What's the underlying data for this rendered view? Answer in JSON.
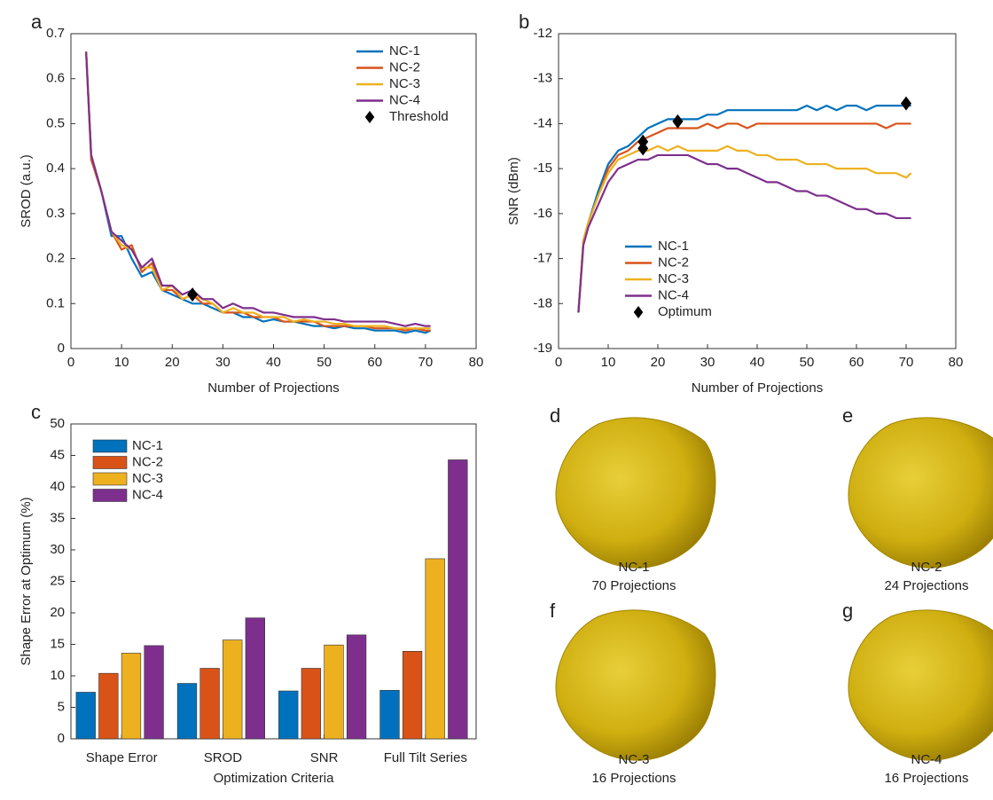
{
  "chart_data": [
    {
      "type": "line",
      "label": "a",
      "xlabel": "Number of Projections",
      "ylabel": "SROD (a.u.)",
      "xlim": [
        0,
        80
      ],
      "xticks": [
        0,
        10,
        20,
        30,
        40,
        50,
        60,
        70,
        80
      ],
      "ylim": [
        0,
        0.7
      ],
      "yticks": [
        0,
        0.1,
        0.2,
        0.3,
        0.4,
        0.5,
        0.6,
        0.7
      ],
      "legend": "upper right",
      "x": [
        3,
        4,
        6,
        8,
        10,
        12,
        14,
        16,
        18,
        20,
        22,
        24,
        26,
        28,
        30,
        32,
        34,
        36,
        38,
        40,
        42,
        44,
        46,
        48,
        50,
        52,
        54,
        56,
        58,
        60,
        62,
        64,
        66,
        68,
        70,
        71
      ],
      "series": [
        {
          "name": "NC-1",
          "color": "#0072BD",
          "values": [
            0.66,
            0.43,
            0.35,
            0.25,
            0.25,
            0.2,
            0.16,
            0.17,
            0.13,
            0.12,
            0.11,
            0.1,
            0.1,
            0.09,
            0.08,
            0.08,
            0.07,
            0.07,
            0.06,
            0.065,
            0.06,
            0.06,
            0.055,
            0.05,
            0.05,
            0.045,
            0.05,
            0.045,
            0.045,
            0.04,
            0.04,
            0.04,
            0.035,
            0.04,
            0.035,
            0.04
          ]
        },
        {
          "name": "NC-2",
          "color": "#D95319",
          "values": [
            0.66,
            0.42,
            0.35,
            0.26,
            0.22,
            0.23,
            0.17,
            0.19,
            0.13,
            0.13,
            0.11,
            0.12,
            0.1,
            0.1,
            0.08,
            0.08,
            0.08,
            0.07,
            0.07,
            0.07,
            0.06,
            0.06,
            0.06,
            0.06,
            0.05,
            0.05,
            0.05,
            0.05,
            0.05,
            0.045,
            0.045,
            0.045,
            0.04,
            0.045,
            0.04,
            0.04
          ]
        },
        {
          "name": "NC-3",
          "color": "#EDB120",
          "values": [
            0.66,
            0.43,
            0.35,
            0.26,
            0.23,
            0.22,
            0.18,
            0.18,
            0.13,
            0.14,
            0.11,
            0.12,
            0.11,
            0.1,
            0.08,
            0.09,
            0.08,
            0.08,
            0.07,
            0.07,
            0.07,
            0.06,
            0.065,
            0.06,
            0.06,
            0.055,
            0.055,
            0.05,
            0.05,
            0.05,
            0.05,
            0.045,
            0.045,
            0.045,
            0.045,
            0.045
          ]
        },
        {
          "name": "NC-4",
          "color": "#7E2F8E",
          "values": [
            0.66,
            0.43,
            0.35,
            0.26,
            0.24,
            0.22,
            0.18,
            0.2,
            0.14,
            0.14,
            0.12,
            0.13,
            0.11,
            0.11,
            0.09,
            0.1,
            0.09,
            0.09,
            0.08,
            0.08,
            0.075,
            0.07,
            0.07,
            0.07,
            0.065,
            0.065,
            0.06,
            0.06,
            0.06,
            0.06,
            0.06,
            0.055,
            0.05,
            0.055,
            0.05,
            0.05
          ]
        },
        {
          "name": "Threshold",
          "color": "#000000",
          "x": [
            24
          ],
          "values": [
            0.12
          ]
        }
      ]
    },
    {
      "type": "line",
      "label": "b",
      "xlabel": "Number of Projections",
      "ylabel": "SNR (dBm)",
      "xlim": [
        0,
        80
      ],
      "xticks": [
        0,
        10,
        20,
        30,
        40,
        50,
        60,
        70,
        80
      ],
      "ylim": [
        -19,
        -12
      ],
      "yticks": [
        -19,
        -18,
        -17,
        -16,
        -15,
        -14,
        -13,
        -12
      ],
      "legend": "lower left",
      "x": [
        4,
        5,
        6,
        8,
        10,
        12,
        14,
        16,
        18,
        20,
        22,
        24,
        26,
        28,
        30,
        32,
        34,
        36,
        38,
        40,
        42,
        44,
        46,
        48,
        50,
        52,
        54,
        56,
        58,
        60,
        62,
        64,
        66,
        68,
        70,
        71
      ],
      "series": [
        {
          "name": "NC-1",
          "color": "#0072BD",
          "values": [
            -18.2,
            -16.6,
            -16.2,
            -15.5,
            -14.9,
            -14.6,
            -14.5,
            -14.3,
            -14.1,
            -14,
            -13.9,
            -13.9,
            -13.9,
            -13.9,
            -13.8,
            -13.8,
            -13.7,
            -13.7,
            -13.7,
            -13.7,
            -13.7,
            -13.7,
            -13.7,
            -13.7,
            -13.6,
            -13.7,
            -13.6,
            -13.7,
            -13.6,
            -13.6,
            -13.7,
            -13.6,
            -13.6,
            -13.6,
            -13.6,
            -13.6
          ]
        },
        {
          "name": "NC-2",
          "color": "#D95319",
          "values": [
            -18.2,
            -16.6,
            -16.2,
            -15.6,
            -15,
            -14.7,
            -14.6,
            -14.4,
            -14.3,
            -14.2,
            -14.1,
            -14.1,
            -14.1,
            -14.1,
            -14,
            -14.1,
            -14,
            -14,
            -14.1,
            -14,
            -14,
            -14,
            -14,
            -14,
            -14,
            -14,
            -14,
            -14,
            -14,
            -14,
            -14,
            -14,
            -14.1,
            -14,
            -14,
            -14
          ]
        },
        {
          "name": "NC-3",
          "color": "#EDB120",
          "values": [
            -18.2,
            -16.6,
            -16.2,
            -15.6,
            -15.1,
            -14.8,
            -14.7,
            -14.6,
            -14.6,
            -14.5,
            -14.6,
            -14.5,
            -14.6,
            -14.6,
            -14.6,
            -14.6,
            -14.5,
            -14.6,
            -14.6,
            -14.7,
            -14.7,
            -14.8,
            -14.8,
            -14.8,
            -14.9,
            -14.9,
            -14.9,
            -15,
            -15,
            -15,
            -15,
            -15.1,
            -15.1,
            -15.1,
            -15.2,
            -15.1
          ]
        },
        {
          "name": "NC-4",
          "color": "#7E2F8E",
          "values": [
            -18.2,
            -16.7,
            -16.3,
            -15.8,
            -15.3,
            -15,
            -14.9,
            -14.8,
            -14.8,
            -14.7,
            -14.7,
            -14.7,
            -14.7,
            -14.8,
            -14.9,
            -14.9,
            -15,
            -15,
            -15.1,
            -15.2,
            -15.3,
            -15.3,
            -15.4,
            -15.5,
            -15.5,
            -15.6,
            -15.6,
            -15.7,
            -15.8,
            -15.9,
            -15.9,
            -16,
            -16,
            -16.1,
            -16.1,
            -16.1
          ]
        },
        {
          "name": "Optimum",
          "color": "#000000",
          "x": [
            17,
            17,
            24,
            70
          ],
          "values": [
            -14.4,
            -14.55,
            -13.95,
            -13.55
          ]
        }
      ]
    },
    {
      "type": "bar",
      "label": "c",
      "xlabel": "Optimization Criteria",
      "ylabel": "Shape Error at Optimum (%)",
      "ylim": [
        0,
        50
      ],
      "yticks": [
        0,
        5,
        10,
        15,
        20,
        25,
        30,
        35,
        40,
        45,
        50
      ],
      "legend": "upper left",
      "categories": [
        "Shape Error",
        "SROD",
        "SNR",
        "Full Tilt Series"
      ],
      "series": [
        {
          "name": "NC-1",
          "color": "#0072BD",
          "values": [
            7.4,
            8.8,
            7.6,
            7.7
          ]
        },
        {
          "name": "NC-2",
          "color": "#D95319",
          "values": [
            10.4,
            11.2,
            11.2,
            13.9
          ]
        },
        {
          "name": "NC-3",
          "color": "#EDB120",
          "values": [
            13.6,
            15.7,
            14.9,
            28.6
          ]
        },
        {
          "name": "NC-4",
          "color": "#7E2F8E",
          "values": [
            14.8,
            19.2,
            16.5,
            44.3
          ]
        }
      ]
    }
  ],
  "images": [
    {
      "label": "d",
      "name": "NC-1",
      "caption": "70 Projections"
    },
    {
      "label": "e",
      "name": "NC-2",
      "caption": "24 Projections"
    },
    {
      "label": "f",
      "name": "NC-3",
      "caption": "16 Projections"
    },
    {
      "label": "g",
      "name": "NC-4",
      "caption": "16 Projections"
    }
  ]
}
